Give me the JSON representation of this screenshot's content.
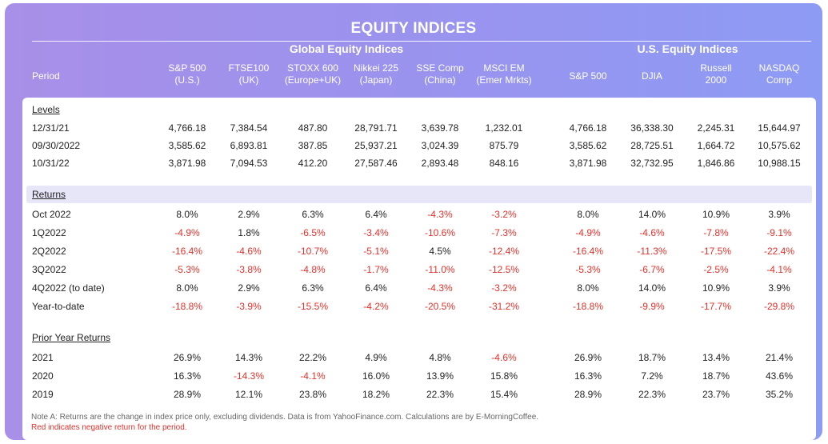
{
  "title": "EQUITY INDICES",
  "groups": {
    "global": "Global Equity Indices",
    "us": "U.S. Equity Indices"
  },
  "columns": [
    {
      "name": "Period",
      "sub": ""
    },
    {
      "name": "S&P 500",
      "sub": "(U.S.)"
    },
    {
      "name": "FTSE100",
      "sub": "(UK)"
    },
    {
      "name": "STOXX 600",
      "sub": "(Europe+UK)"
    },
    {
      "name": "Nikkei 225",
      "sub": "(Japan)"
    },
    {
      "name": "SSE Comp",
      "sub": "(China)"
    },
    {
      "name": "MSCI EM",
      "sub": "(Emer Mrkts)"
    },
    {
      "name": "S&P 500",
      "sub": ""
    },
    {
      "name": "DJIA",
      "sub": ""
    },
    {
      "name": "Russell",
      "sub": "2000"
    },
    {
      "name": "NASDAQ",
      "sub": "Comp"
    }
  ],
  "sections": [
    {
      "title": "Levels",
      "rows": [
        {
          "label": "12/31/21",
          "values": [
            "4,766.18",
            "7,384.54",
            "487.80",
            "28,791.71",
            "3,639.78",
            "1,232.01",
            "4,766.18",
            "36,338.30",
            "2,245.31",
            "15,644.97"
          ]
        },
        {
          "label": "09/30/2022",
          "values": [
            "3,585.62",
            "6,893.81",
            "387.85",
            "25,937.21",
            "3,024.39",
            "875.79",
            "3,585.62",
            "28,725.51",
            "1,664.72",
            "10,575.62"
          ]
        },
        {
          "label": "10/31/22",
          "values": [
            "3,871.98",
            "7,094.53",
            "412.20",
            "27,587.46",
            "2,893.48",
            "848.16",
            "3,871.98",
            "32,732.95",
            "1,846.86",
            "10,988.15"
          ]
        }
      ]
    },
    {
      "title": "Returns",
      "rows": [
        {
          "label": "Oct 2022",
          "values": [
            "8.0%",
            "2.9%",
            "6.3%",
            "6.4%",
            "-4.3%",
            "-3.2%",
            "8.0%",
            "14.0%",
            "10.9%",
            "3.9%"
          ]
        },
        {
          "label": "1Q2022",
          "values": [
            "-4.9%",
            "1.8%",
            "-6.5%",
            "-3.4%",
            "-10.6%",
            "-7.3%",
            "-4.9%",
            "-4.6%",
            "-7.8%",
            "-9.1%"
          ]
        },
        {
          "label": "2Q2022",
          "values": [
            "-16.4%",
            "-4.6%",
            "-10.7%",
            "-5.1%",
            "4.5%",
            "-12.4%",
            "-16.4%",
            "-11.3%",
            "-17.5%",
            "-22.4%"
          ]
        },
        {
          "label": "3Q2022",
          "values": [
            "-5.3%",
            "-3.8%",
            "-4.8%",
            "-1.7%",
            "-11.0%",
            "-12.5%",
            "-5.3%",
            "-6.7%",
            "-2.5%",
            "-4.1%"
          ]
        },
        {
          "label": "4Q2022 (to date)",
          "values": [
            "8.0%",
            "2.9%",
            "6.3%",
            "6.4%",
            "-4.3%",
            "-3.2%",
            "8.0%",
            "14.0%",
            "10.9%",
            "3.9%"
          ]
        },
        {
          "label": "Year-to-date",
          "values": [
            "-18.8%",
            "-3.9%",
            "-15.5%",
            "-4.2%",
            "-20.5%",
            "-31.2%",
            "-18.8%",
            "-9.9%",
            "-17.7%",
            "-29.8%"
          ]
        }
      ]
    },
    {
      "title": "Prior Year Returns",
      "rows": [
        {
          "label": "2021",
          "values": [
            "26.9%",
            "14.3%",
            "22.2%",
            "4.9%",
            "4.8%",
            "-4.6%",
            "26.9%",
            "18.7%",
            "13.4%",
            "21.4%"
          ]
        },
        {
          "label": "2020",
          "values": [
            "16.3%",
            "-14.3%",
            "-4.1%",
            "16.0%",
            "13.9%",
            "15.8%",
            "16.3%",
            "7.2%",
            "18.7%",
            "43.6%"
          ]
        },
        {
          "label": "2019",
          "values": [
            "28.9%",
            "12.1%",
            "23.8%",
            "18.2%",
            "22.3%",
            "15.4%",
            "28.9%",
            "22.3%",
            "23.7%",
            "35.2%"
          ]
        }
      ]
    }
  ],
  "notes": [
    "Note A:  Returns are the change in index price only, excluding dividends. Data is from YahooFinance.com. Calculations are by E-MorningCoffee.",
    "Red indicates negative return for the period."
  ],
  "colors": {
    "negative": "#e4312b",
    "frame_start": "#a88fe8",
    "frame_end": "#8d9bf4",
    "returns_shade": "#e7e6f9"
  }
}
